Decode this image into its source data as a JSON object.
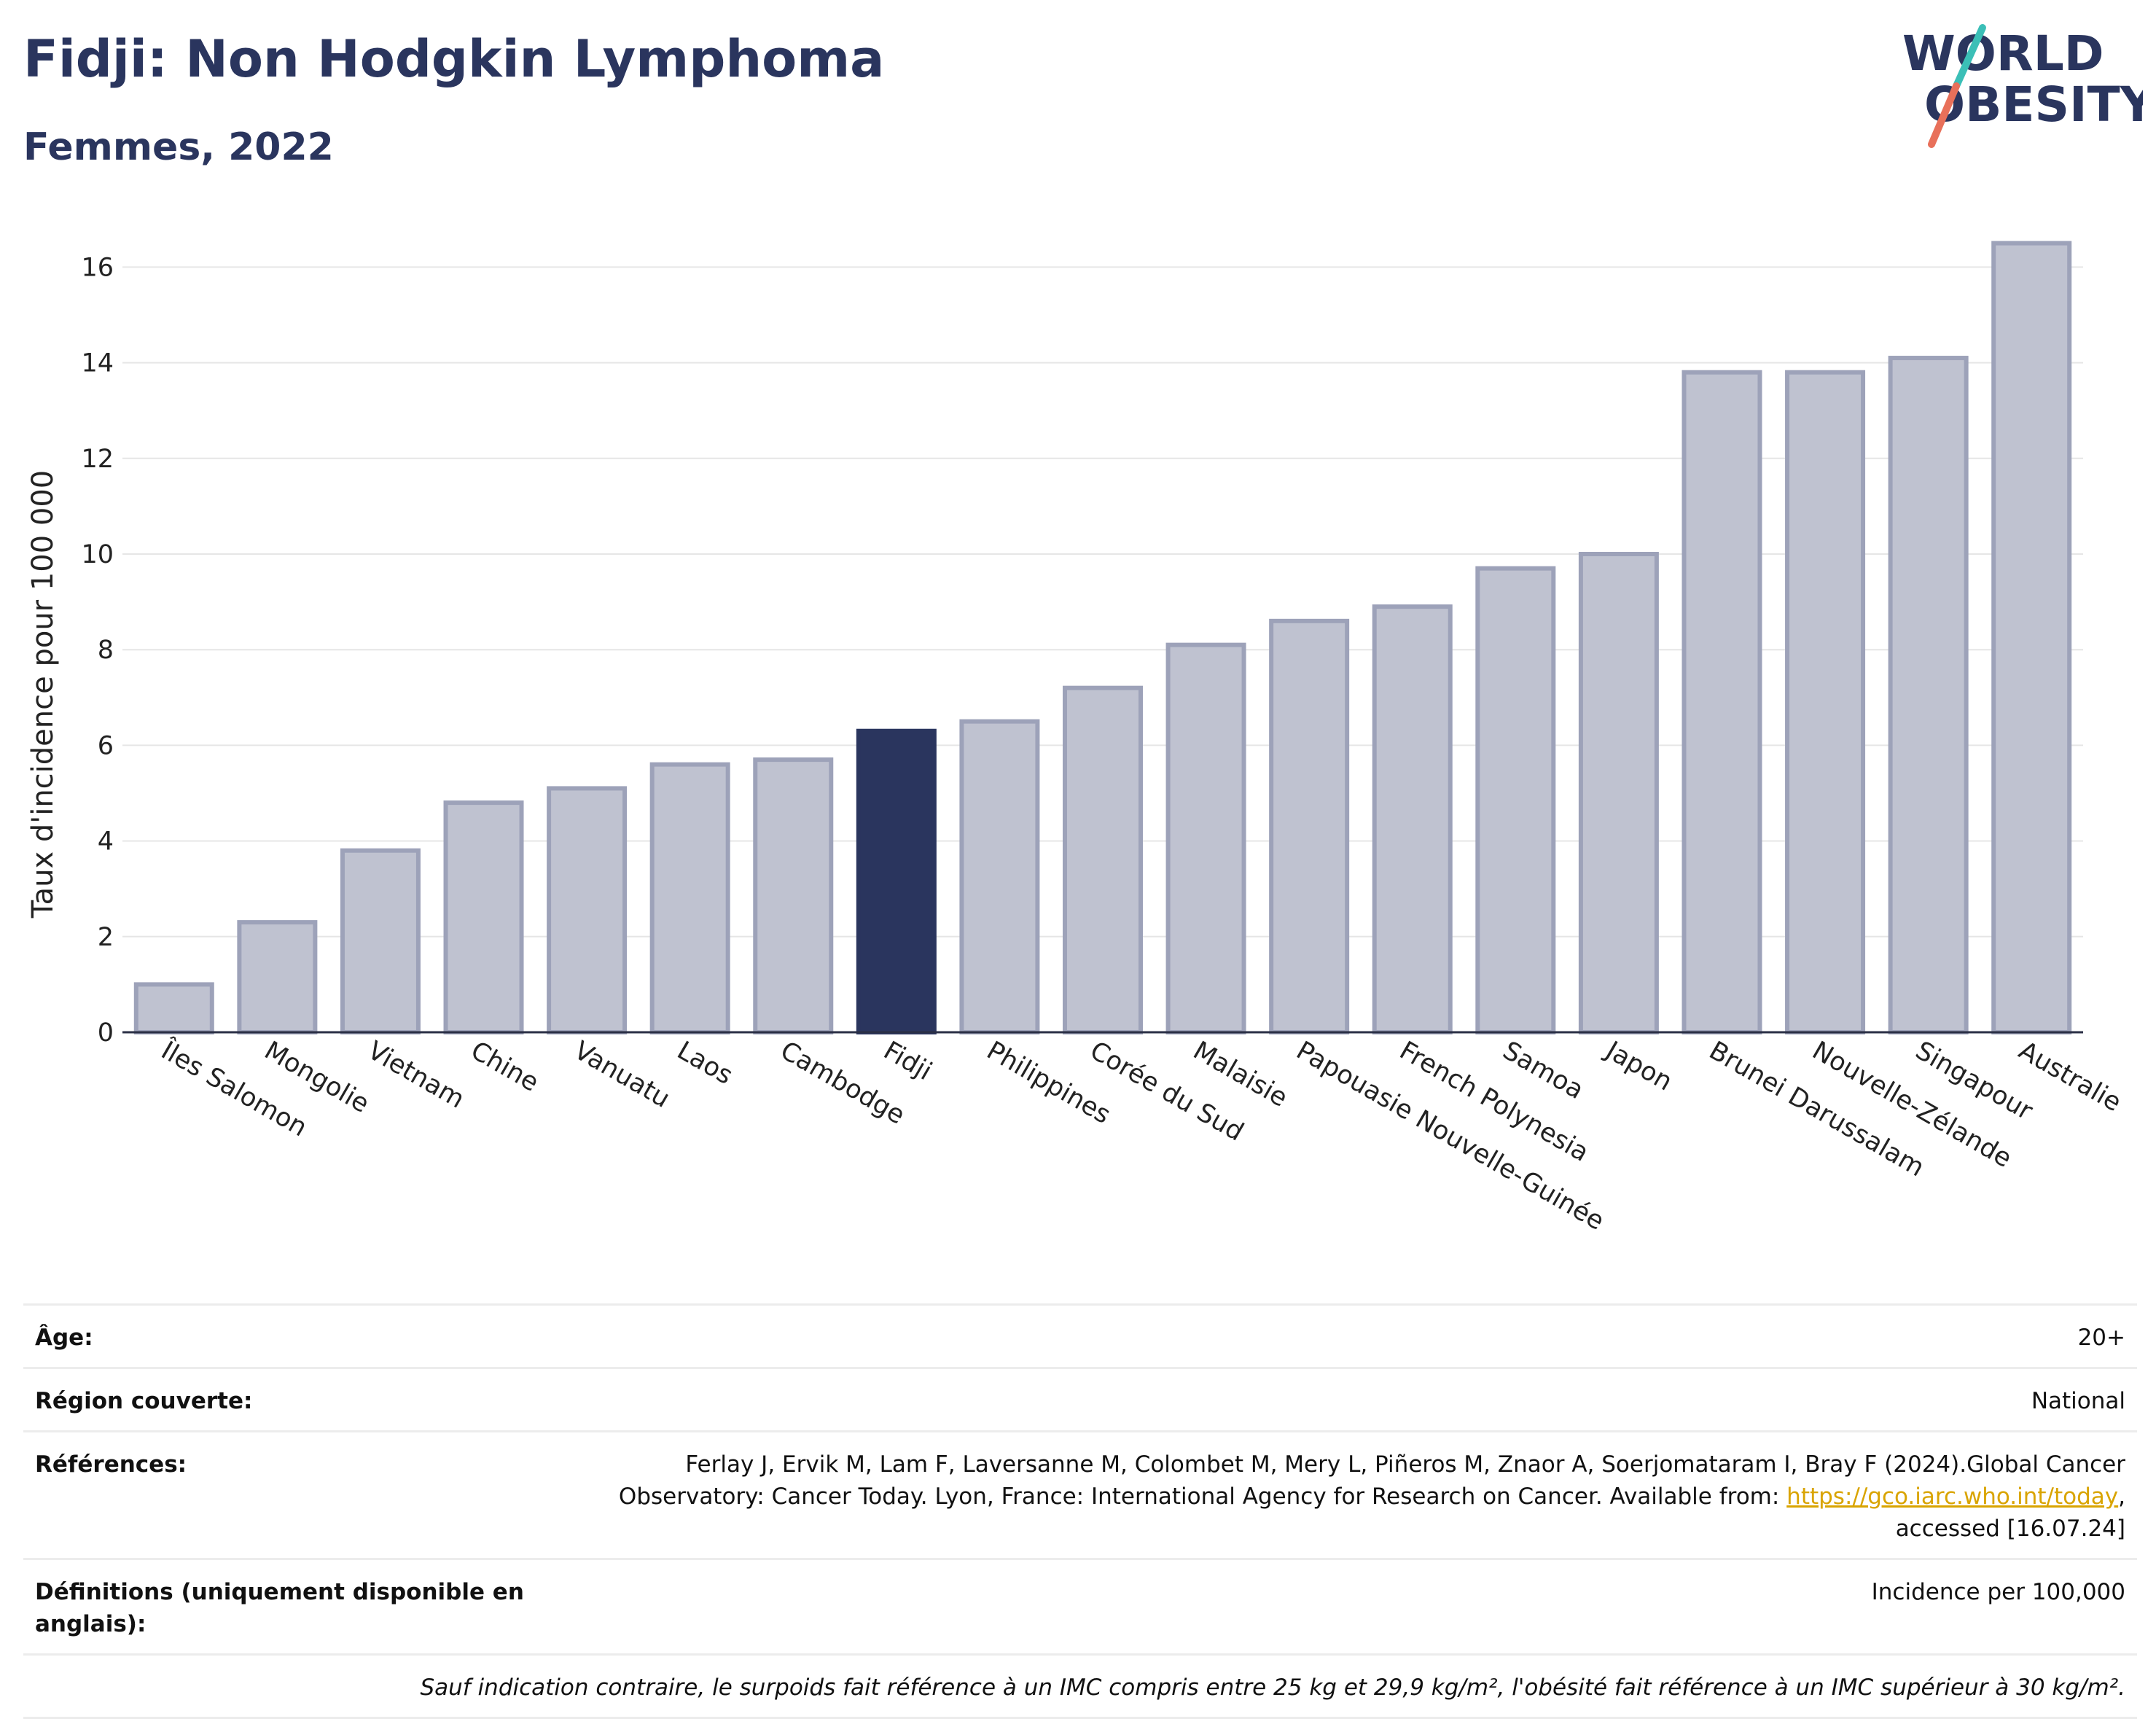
{
  "header": {
    "title": "Fidji: Non Hodgkin Lymphoma",
    "subtitle": "Femmes, 2022"
  },
  "logo": {
    "line1": "WORLD",
    "line2": "OBESITY"
  },
  "colors": {
    "highlight": "#2a355e",
    "bar_fill": "#bfc2d0",
    "bar_stroke": "#9da2b9",
    "logo_teal": "#3bbfb7",
    "logo_coral": "#e8705a",
    "link": "#d9a400"
  },
  "chart_data": {
    "type": "bar",
    "title": "Fidji: Non Hodgkin Lymphoma",
    "subtitle": "Femmes, 2022",
    "xlabel": "",
    "ylabel": "Taux d'incidence pour 100 000",
    "ylim": [
      0,
      17
    ],
    "yticks": [
      0,
      2,
      4,
      6,
      8,
      10,
      12,
      14,
      16
    ],
    "grid": true,
    "highlight_category": "Fidji",
    "categories": [
      "Îles Salomon",
      "Mongolie",
      "Vietnam",
      "Chine",
      "Vanuatu",
      "Laos",
      "Cambodge",
      "Fidji",
      "Philippines",
      "Corée du Sud",
      "Malaisie",
      "Papouasie Nouvelle-Guinée",
      "French Polynesia",
      "Samoa",
      "Japon",
      "Brunei Darussalam",
      "Nouvelle-Zélande",
      "Singapour",
      "Australie"
    ],
    "values": [
      1.0,
      2.3,
      3.8,
      4.8,
      5.1,
      5.6,
      5.7,
      6.3,
      6.5,
      7.2,
      8.1,
      8.6,
      8.9,
      9.7,
      10.0,
      13.8,
      13.8,
      14.1,
      16.5
    ]
  },
  "meta": {
    "age_label": "Âge:",
    "age_value": "20+",
    "region_label": "Région couverte:",
    "region_value": "National",
    "references_label": "Références:",
    "references_text": "Ferlay J, Ervik M, Lam F, Laversanne M, Colombet M, Mery L, Piñeros M, Znaor A, Soerjomataram I, Bray F (2024).Global Cancer Observatory: Cancer Today. Lyon, France: International Agency for Research on Cancer. Available from: ",
    "references_link": "https://gco.iarc.who.int/today",
    "references_suffix": ", accessed [16.07.24]",
    "definitions_label": "Définitions (uniquement disponible en anglais):",
    "definitions_value": "Incidence per 100,000",
    "note": "Sauf indication contraire, le surpoids fait référence à un IMC compris entre 25 kg et 29,9 kg/m², l'obésité fait référence à un IMC supérieur à 30 kg/m²."
  }
}
